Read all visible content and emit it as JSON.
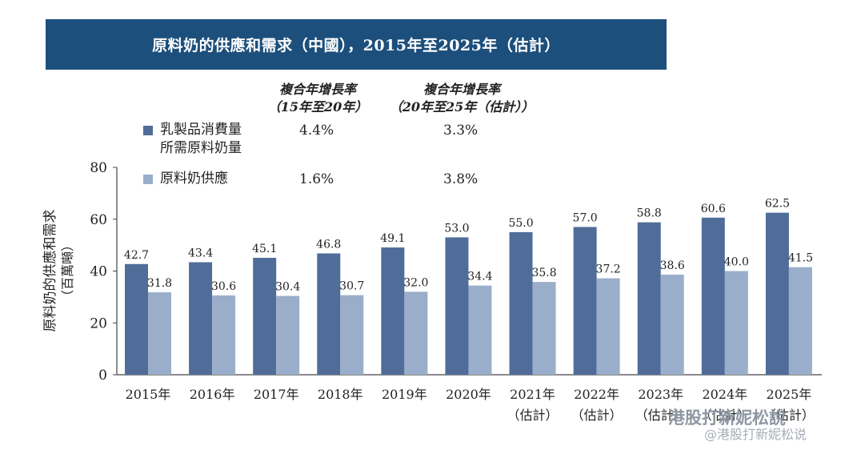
{
  "title": "原料奶的供應和需求（中國），2015年至2025年（估計）",
  "cagr_headers": [
    {
      "line1": "複合年增長率",
      "line2": "（15年至20年）"
    },
    {
      "line1": "複合年增長率",
      "line2": "（20年至25年（估計））"
    }
  ],
  "legend": [
    {
      "line1": "乳製品消費量",
      "line2": "所需原料奶量",
      "cagr1": "4.4%",
      "cagr2": "3.3%",
      "color": "#4f6d98"
    },
    {
      "line1": "原料奶供應",
      "line2": "",
      "cagr1": "1.6%",
      "cagr2": "3.8%",
      "color": "#9aaecb"
    }
  ],
  "chart_data": {
    "type": "bar",
    "ylabel": "原料奶的供應和需求",
    "ylabel_unit": "（百萬噸）",
    "ylim": [
      0,
      80
    ],
    "yticks": [
      "0",
      "20",
      "40",
      "60",
      "80"
    ],
    "categories": [
      {
        "label": "2015年",
        "sub": ""
      },
      {
        "label": "2016年",
        "sub": ""
      },
      {
        "label": "2017年",
        "sub": ""
      },
      {
        "label": "2018年",
        "sub": ""
      },
      {
        "label": "2019年",
        "sub": ""
      },
      {
        "label": "2020年",
        "sub": ""
      },
      {
        "label": "2021年",
        "sub": "（估計）"
      },
      {
        "label": "2022年",
        "sub": "（估計）"
      },
      {
        "label": "2023年",
        "sub": "（估計）"
      },
      {
        "label": "2024年",
        "sub": "（估計）"
      },
      {
        "label": "2025年",
        "sub": "（估計）"
      }
    ],
    "series": [
      {
        "name": "乳製品消費量所需原料奶量",
        "color": "#4f6d98",
        "values": [
          42.7,
          43.4,
          45.1,
          46.8,
          49.1,
          53.0,
          55.0,
          57.0,
          58.8,
          60.6,
          62.5
        ],
        "labels": [
          "42.7",
          "43.4",
          "45.1",
          "46.8",
          "49.1",
          "53.0",
          "55.0",
          "57.0",
          "58.8",
          "60.6",
          "62.5"
        ]
      },
      {
        "name": "原料奶供應",
        "color": "#9aaecb",
        "values": [
          31.8,
          30.6,
          30.4,
          30.7,
          32.0,
          34.4,
          35.8,
          37.2,
          38.6,
          40.0,
          41.5
        ],
        "labels": [
          "31.8",
          "30.6",
          "30.4",
          "30.7",
          "32.0",
          "34.4",
          "35.8",
          "37.2",
          "38.6",
          "40.0",
          "41.5"
        ]
      }
    ]
  },
  "watermark": {
    "line1": "港股打新妮松說",
    "line2": "@港股打新妮松说"
  }
}
